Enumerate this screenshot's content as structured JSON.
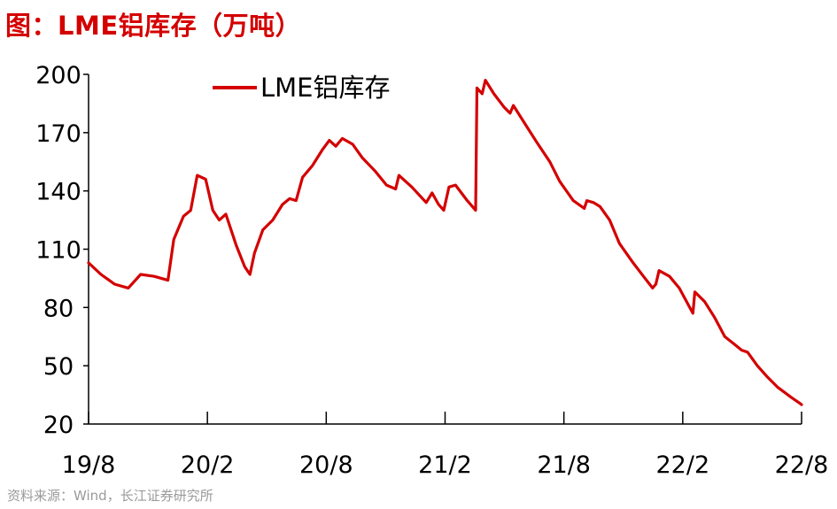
{
  "header": {
    "title": "图：LME铝库存（万吨）"
  },
  "footer": {
    "source": "资料来源：Wind，长江证券研究所"
  },
  "colors": {
    "series": "#d40000",
    "axis": "#000000"
  },
  "chart_data": {
    "type": "line",
    "title": "图：LME铝库存（万吨）",
    "xlabel": "",
    "ylabel": "",
    "ylim": [
      20,
      200
    ],
    "yticks": [
      20,
      50,
      80,
      110,
      140,
      170,
      200
    ],
    "x_tick_labels": [
      "19/8",
      "20/2",
      "20/8",
      "21/2",
      "21/8",
      "22/2",
      "22/8"
    ],
    "grid": false,
    "legend": {
      "position": "top-left",
      "entries": [
        "LME铝库存"
      ]
    },
    "series": [
      {
        "name": "LME铝库存",
        "color": "#d40000",
        "points": [
          [
            "2019-08-01",
            103
          ],
          [
            "2019-08-20",
            97
          ],
          [
            "2019-09-10",
            92
          ],
          [
            "2019-10-01",
            90
          ],
          [
            "2019-10-20",
            97
          ],
          [
            "2019-11-10",
            96
          ],
          [
            "2019-12-01",
            94
          ],
          [
            "2019-12-10",
            115
          ],
          [
            "2019-12-25",
            127
          ],
          [
            "2020-01-05",
            130
          ],
          [
            "2020-01-15",
            148
          ],
          [
            "2020-01-28",
            146
          ],
          [
            "2020-02-08",
            130
          ],
          [
            "2020-02-18",
            125
          ],
          [
            "2020-02-28",
            128
          ],
          [
            "2020-03-15",
            112
          ],
          [
            "2020-03-28",
            101
          ],
          [
            "2020-04-05",
            97
          ],
          [
            "2020-04-12",
            108
          ],
          [
            "2020-04-25",
            120
          ],
          [
            "2020-05-10",
            125
          ],
          [
            "2020-05-25",
            133
          ],
          [
            "2020-06-05",
            136
          ],
          [
            "2020-06-15",
            135
          ],
          [
            "2020-06-25",
            147
          ],
          [
            "2020-07-10",
            153
          ],
          [
            "2020-07-25",
            161
          ],
          [
            "2020-08-05",
            166
          ],
          [
            "2020-08-15",
            163
          ],
          [
            "2020-08-25",
            167
          ],
          [
            "2020-09-10",
            164
          ],
          [
            "2020-09-25",
            157
          ],
          [
            "2020-10-15",
            150
          ],
          [
            "2020-11-01",
            143
          ],
          [
            "2020-11-15",
            141
          ],
          [
            "2020-11-20",
            148
          ],
          [
            "2020-12-10",
            142
          ],
          [
            "2021-01-01",
            134
          ],
          [
            "2021-01-10",
            139
          ],
          [
            "2021-01-20",
            133
          ],
          [
            "2021-01-28",
            130
          ],
          [
            "2021-02-05",
            142
          ],
          [
            "2021-02-15",
            143
          ],
          [
            "2021-03-05",
            135
          ],
          [
            "2021-03-18",
            130
          ],
          [
            "2021-03-20",
            193
          ],
          [
            "2021-03-28",
            190
          ],
          [
            "2021-04-02",
            197
          ],
          [
            "2021-04-15",
            190
          ],
          [
            "2021-05-01",
            183
          ],
          [
            "2021-05-10",
            180
          ],
          [
            "2021-05-15",
            184
          ],
          [
            "2021-06-01",
            175
          ],
          [
            "2021-06-20",
            165
          ],
          [
            "2021-07-10",
            155
          ],
          [
            "2021-07-25",
            145
          ],
          [
            "2021-08-15",
            135
          ],
          [
            "2021-09-01",
            131
          ],
          [
            "2021-09-05",
            135
          ],
          [
            "2021-09-15",
            134
          ],
          [
            "2021-09-25",
            132
          ],
          [
            "2021-10-10",
            125
          ],
          [
            "2021-10-25",
            113
          ],
          [
            "2021-11-15",
            103
          ],
          [
            "2021-12-01",
            96
          ],
          [
            "2021-12-15",
            90
          ],
          [
            "2021-12-20",
            92
          ],
          [
            "2021-12-25",
            99
          ],
          [
            "2022-01-10",
            96
          ],
          [
            "2022-01-25",
            90
          ],
          [
            "2022-02-10",
            80
          ],
          [
            "2022-02-15",
            77
          ],
          [
            "2022-02-18",
            88
          ],
          [
            "2022-03-05",
            83
          ],
          [
            "2022-03-20",
            75
          ],
          [
            "2022-04-05",
            65
          ],
          [
            "2022-04-20",
            61
          ],
          [
            "2022-05-01",
            58
          ],
          [
            "2022-05-10",
            57
          ],
          [
            "2022-05-25",
            50
          ],
          [
            "2022-06-10",
            44
          ],
          [
            "2022-06-25",
            39
          ],
          [
            "2022-07-15",
            34
          ],
          [
            "2022-07-28",
            31
          ],
          [
            "2022-08-01",
            30
          ]
        ]
      }
    ]
  }
}
